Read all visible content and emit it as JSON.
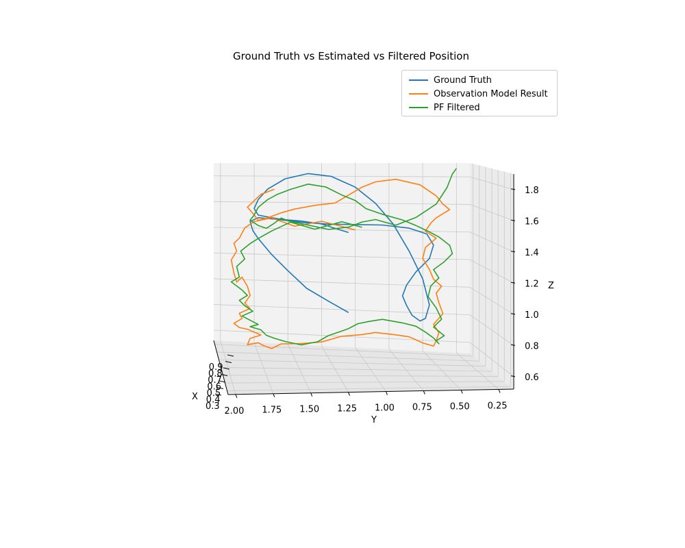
{
  "chart_data": {
    "type": "line",
    "projection": "3d",
    "title": "Ground Truth vs Estimated vs Filtered Position",
    "xlabel": "X",
    "ylabel": "Y",
    "zlabel": "Z",
    "x_ticks": [
      "0.3",
      "0.4",
      "0.5",
      "0.6",
      "0.7",
      "0.8",
      "0.9"
    ],
    "y_ticks": [
      "2.00",
      "1.75",
      "1.50",
      "1.25",
      "1.00",
      "0.75",
      "0.50",
      "0.25"
    ],
    "z_ticks": [
      "0.6",
      "0.8",
      "1.0",
      "1.2",
      "1.4",
      "1.6",
      "1.8"
    ],
    "legend_position": "top-right",
    "grid": true,
    "series": [
      {
        "name": "Ground Truth",
        "color": "#1f77b4",
        "y": [
          1.05,
          1.2,
          1.36,
          1.5,
          1.62,
          1.72,
          1.76,
          1.78,
          1.72,
          1.58,
          1.4,
          1.2,
          1.0,
          0.8,
          0.6,
          0.47,
          0.42,
          0.45,
          0.55,
          0.62,
          0.65,
          0.62,
          0.58,
          0.52,
          0.48,
          0.45,
          0.5,
          0.6,
          0.72,
          0.85,
          1.0,
          1.18,
          1.35,
          1.52,
          1.65,
          1.72,
          1.75,
          1.72,
          1.55,
          1.4,
          1.25,
          1.12,
          1.05
        ],
        "z": [
          0.78,
          0.86,
          0.95,
          1.08,
          1.2,
          1.32,
          1.38,
          1.45,
          1.48,
          1.47,
          1.45,
          1.44,
          1.44,
          1.44,
          1.42,
          1.38,
          1.3,
          1.2,
          1.1,
          1.0,
          0.92,
          0.85,
          0.78,
          0.74,
          0.76,
          0.86,
          1.05,
          1.25,
          1.45,
          1.6,
          1.72,
          1.8,
          1.82,
          1.78,
          1.7,
          1.62,
          1.55,
          1.5,
          1.47,
          1.46,
          1.44,
          1.4,
          1.38
        ]
      },
      {
        "name": "Observation Model Result",
        "color": "#ff7f0e",
        "y": [
          1.0,
          1.25,
          1.45,
          1.62,
          1.75,
          1.82,
          1.86,
          1.9,
          1.88,
          1.92,
          1.9,
          1.88,
          1.84,
          1.8,
          1.78,
          1.82,
          1.78,
          1.86,
          1.84,
          1.9,
          1.86,
          1.8,
          1.75,
          1.7,
          1.78,
          1.8,
          1.72,
          1.68,
          1.62,
          1.55,
          1.4,
          1.25,
          1.1,
          0.95,
          0.85,
          0.7,
          0.6,
          0.5,
          0.42,
          0.4,
          0.38,
          0.42,
          0.35,
          0.38,
          0.4,
          0.36,
          0.42,
          0.45,
          0.5,
          0.48,
          0.4,
          0.48,
          0.44,
          0.4,
          0.3,
          0.35,
          0.4,
          0.52,
          0.7,
          0.85,
          0.95,
          1.05,
          1.15,
          1.3,
          1.45,
          1.55,
          1.65,
          1.72,
          1.75,
          1.8,
          1.7,
          1.6
        ],
        "z": [
          1.4,
          1.46,
          1.42,
          1.48,
          1.45,
          1.4,
          1.32,
          1.28,
          1.22,
          1.15,
          1.05,
          0.98,
          1.02,
          0.95,
          0.88,
          0.82,
          0.78,
          0.74,
          0.7,
          0.66,
          0.63,
          0.62,
          0.6,
          0.58,
          0.55,
          0.5,
          0.52,
          0.5,
          0.48,
          0.52,
          0.53,
          0.55,
          0.6,
          0.62,
          0.64,
          0.63,
          0.62,
          0.58,
          0.56,
          0.6,
          0.66,
          0.72,
          0.8,
          0.88,
          0.95,
          1.0,
          1.05,
          1.12,
          1.2,
          1.28,
          1.35,
          1.4,
          1.46,
          1.5,
          1.56,
          1.6,
          1.66,
          1.74,
          1.78,
          1.76,
          1.72,
          1.66,
          1.6,
          1.58,
          1.55,
          1.52,
          1.48,
          1.46,
          1.5,
          1.56,
          1.66,
          1.7
        ]
      },
      {
        "name": "PF Filtered",
        "color": "#2ca02c",
        "y": [
          0.95,
          1.1,
          1.3,
          1.48,
          1.62,
          1.72,
          1.78,
          1.85,
          1.82,
          1.88,
          1.86,
          1.92,
          1.84,
          1.8,
          1.86,
          1.82,
          1.76,
          1.84,
          1.8,
          1.72,
          1.78,
          1.7,
          1.66,
          1.6,
          1.52,
          1.4,
          1.28,
          1.2,
          1.1,
          1.05,
          0.98,
          0.9,
          0.8,
          0.65,
          0.55,
          0.48,
          0.42,
          0.38,
          0.4,
          0.34,
          0.42,
          0.36,
          0.4,
          0.46,
          0.44,
          0.38,
          0.42,
          0.34,
          0.28,
          0.3,
          0.38,
          0.46,
          0.55,
          0.65,
          0.8,
          0.92,
          1.0,
          1.1,
          1.22,
          1.35,
          1.48,
          1.58,
          1.65,
          1.72,
          1.75,
          1.78,
          1.72,
          1.66,
          1.6,
          1.55,
          1.5,
          1.4,
          1.3,
          1.2,
          1.05,
          0.95,
          0.85,
          0.7,
          0.55,
          0.4,
          0.32,
          0.28,
          0.25
        ],
        "z": [
          1.42,
          1.46,
          1.4,
          1.45,
          1.38,
          1.32,
          1.28,
          1.22,
          1.16,
          1.1,
          1.02,
          0.98,
          0.92,
          0.88,
          0.84,
          0.8,
          0.76,
          0.72,
          0.7,
          0.66,
          0.64,
          0.62,
          0.58,
          0.56,
          0.54,
          0.52,
          0.55,
          0.6,
          0.64,
          0.66,
          0.7,
          0.72,
          0.74,
          0.72,
          0.7,
          0.66,
          0.62,
          0.58,
          0.6,
          0.64,
          0.7,
          0.76,
          0.84,
          0.92,
          1.0,
          1.06,
          1.12,
          1.18,
          1.24,
          1.3,
          1.36,
          1.4,
          1.44,
          1.48,
          1.52,
          1.56,
          1.62,
          1.66,
          1.72,
          1.74,
          1.7,
          1.66,
          1.62,
          1.56,
          1.5,
          1.46,
          1.42,
          1.4,
          1.44,
          1.48,
          1.46,
          1.44,
          1.42,
          1.4,
          1.42,
          1.46,
          1.48,
          1.44,
          1.5,
          1.6,
          1.72,
          1.82,
          1.86
        ]
      }
    ]
  }
}
